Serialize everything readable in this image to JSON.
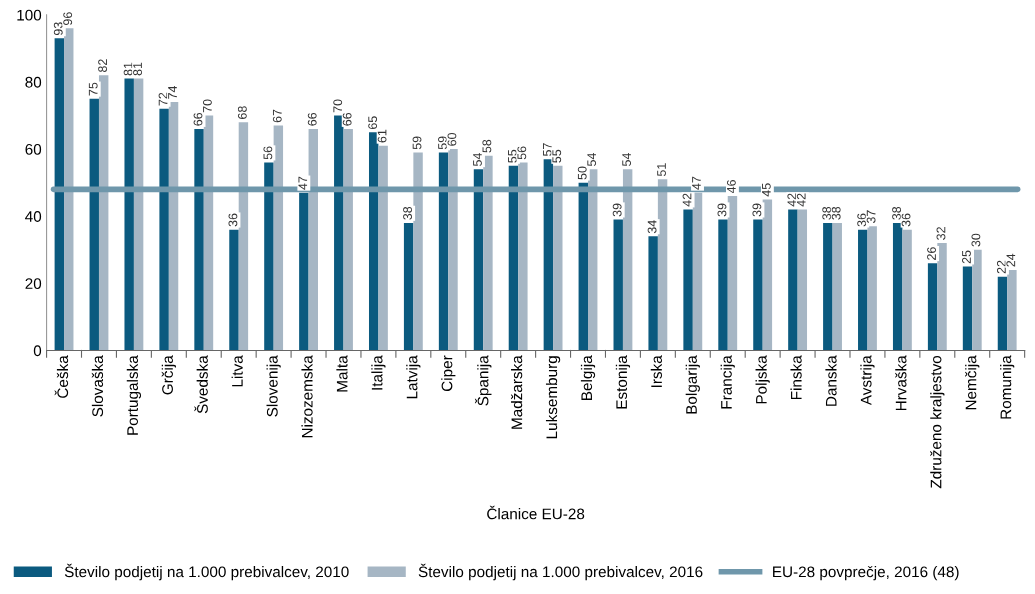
{
  "chart_data": {
    "type": "bar",
    "xlabel": "Članice EU-28",
    "categories": [
      "Češka",
      "Slovaška",
      "Portugalska",
      "Grčija",
      "Švedska",
      "Litva",
      "Slovenija",
      "Nizozemska",
      "Malta",
      "Italija",
      "Latvija",
      "Ciper",
      "Španija",
      "Madžarska",
      "Luksemburg",
      "Belgija",
      "Estonija",
      "Irska",
      "Bolgarija",
      "Francija",
      "Poljska",
      "Finska",
      "Danska",
      "Avstrija",
      "Hrvaška",
      "Združeno kraljestvo",
      "Nemčija",
      "Romunija"
    ],
    "series": [
      {
        "name": "Število podjetij na 1.000 prebivalcev, 2010",
        "color": "#0b5a7f",
        "values": [
          93,
          75,
          81,
          72,
          66,
          36,
          56,
          47,
          70,
          65,
          38,
          59,
          54,
          55,
          57,
          50,
          39,
          34,
          42,
          39,
          39,
          42,
          38,
          36,
          38,
          26,
          25,
          22
        ]
      },
      {
        "name": "Število podjetij na 1.000 prebivalcev, 2016",
        "color": "#a6b6c4",
        "values": [
          96,
          82,
          81,
          74,
          70,
          68,
          67,
          66,
          66,
          61,
          59,
          60,
          58,
          56,
          55,
          54,
          54,
          51,
          47,
          46,
          45,
          42,
          38,
          37,
          36,
          32,
          30,
          24
        ]
      }
    ],
    "ylim": [
      0,
      100
    ],
    "yticks": [
      0,
      20,
      40,
      60,
      80,
      100
    ],
    "ref_lines": [
      {
        "axis": "y",
        "value": 48,
        "label": "EU-28 povprečje, 2016 (48)",
        "color": "#6f97ab"
      }
    ],
    "data_labels": true,
    "grid": false,
    "legend": "bottom"
  }
}
